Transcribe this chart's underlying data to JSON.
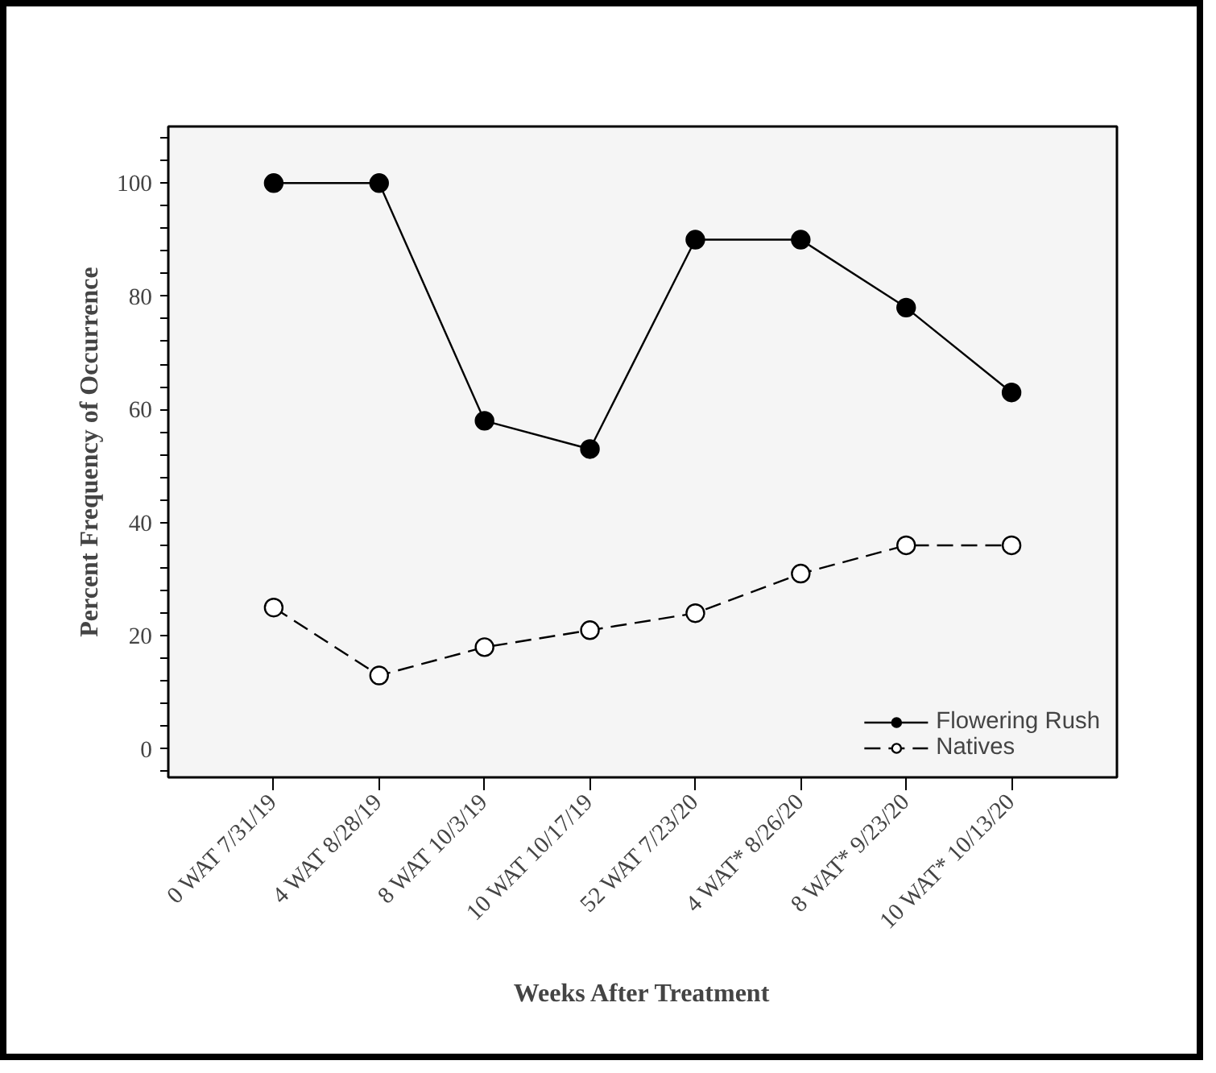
{
  "chart_data": {
    "type": "line",
    "xlabel": "Weeks After Treatment",
    "ylabel": "Percent Frequency of Occurrence",
    "categories": [
      "0 WAT 7/31/19",
      "4 WAT 8/28/19",
      "8 WAT 10/3/19",
      "10 WAT 10/17/19",
      "52 WAT 7/23/20",
      "4 WAT* 8/26/20",
      "8 WAT* 9/23/20",
      "10 WAT* 10/13/20"
    ],
    "series": [
      {
        "name": "Flowering Rush",
        "color": "#000000",
        "marker": "circle",
        "line_style": "solid",
        "values": [
          100,
          100,
          58,
          53,
          90,
          90,
          78,
          63
        ]
      },
      {
        "name": "Natives",
        "color": "#000000",
        "marker": "circle",
        "line_style": "dashed",
        "values": [
          25,
          13,
          18,
          21,
          24,
          31,
          36,
          36
        ]
      }
    ],
    "ylim": [
      -5,
      110
    ],
    "yticks": [
      {
        "value": -4,
        "label": null
      },
      0,
      {
        "value": 4,
        "label": null
      },
      {
        "value": 8,
        "label": null
      },
      {
        "value": 12,
        "label": null
      },
      {
        "value": 16,
        "label": null
      },
      20,
      {
        "value": 24,
        "label": null
      },
      {
        "value": 28,
        "label": null
      },
      {
        "value": 32,
        "label": null
      },
      {
        "value": 36,
        "label": null
      },
      40,
      {
        "value": 44,
        "label": null
      },
      {
        "value": 48,
        "label": null
      },
      {
        "value": 52,
        "label": null
      },
      {
        "value": 56,
        "label": null
      },
      60,
      {
        "value": 64,
        "label": null
      },
      {
        "value": 68,
        "label": null
      },
      {
        "value": 72,
        "label": null
      },
      {
        "value": 76,
        "label": null
      },
      80,
      {
        "value": 84,
        "label": null
      },
      {
        "value": 88,
        "label": null
      },
      {
        "value": 92,
        "label": null
      },
      {
        "value": 96,
        "label": null
      },
      100,
      {
        "value": 104,
        "label": null
      },
      {
        "value": 108,
        "label": null
      }
    ],
    "grid": false,
    "legend": "bottom right"
  }
}
